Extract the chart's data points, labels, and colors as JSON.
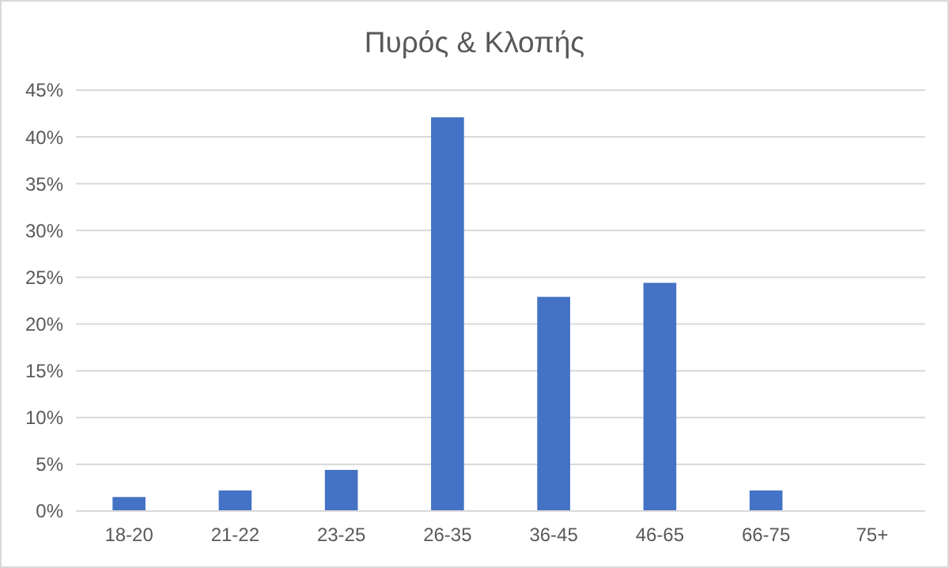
{
  "chart_data": {
    "type": "bar",
    "title": "Πυρός & Κλοπής",
    "categories": [
      "18-20",
      "21-22",
      "23-25",
      "26-35",
      "36-45",
      "46-65",
      "66-75",
      "75+"
    ],
    "values": [
      1.5,
      2.2,
      4.4,
      42.1,
      22.9,
      24.4,
      2.2,
      0
    ],
    "color": "#4472c4",
    "ylim": [
      0,
      45
    ],
    "yticks": [
      {
        "value": 0,
        "label": "0%"
      },
      {
        "value": 5,
        "label": "5%"
      },
      {
        "value": 10,
        "label": "10%"
      },
      {
        "value": 15,
        "label": "15%"
      },
      {
        "value": 20,
        "label": "20%"
      },
      {
        "value": 25,
        "label": "25%"
      },
      {
        "value": 30,
        "label": "30%"
      },
      {
        "value": 35,
        "label": "35%"
      },
      {
        "value": 40,
        "label": "40%"
      },
      {
        "value": 45,
        "label": "45%"
      }
    ],
    "grid": "y"
  }
}
